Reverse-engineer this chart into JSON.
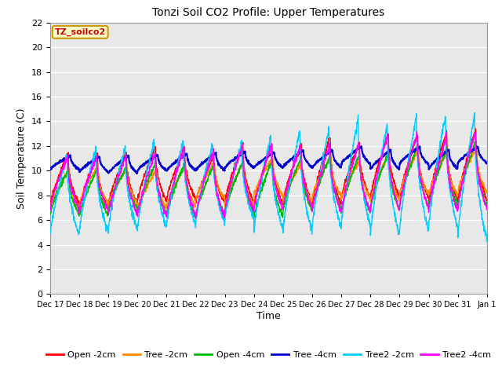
{
  "title": "Tonzi Soil CO2 Profile: Upper Temperatures",
  "xlabel": "Time",
  "ylabel": "Soil Temperature (C)",
  "ylim": [
    0,
    22
  ],
  "yticks": [
    0,
    2,
    4,
    6,
    8,
    10,
    12,
    14,
    16,
    18,
    20,
    22
  ],
  "series": {
    "Open -2cm": {
      "color": "#ff0000",
      "lw": 1.0
    },
    "Tree -2cm": {
      "color": "#ff8c00",
      "lw": 1.0
    },
    "Open -4cm": {
      "color": "#00bb00",
      "lw": 1.0
    },
    "Tree -4cm": {
      "color": "#0000cc",
      "lw": 1.5
    },
    "Tree2 -2cm": {
      "color": "#00ccff",
      "lw": 1.0
    },
    "Tree2 -4cm": {
      "color": "#ff00ff",
      "lw": 1.0
    }
  },
  "xtick_labels": [
    "Dec 17",
    "Dec 18",
    "Dec 19",
    "Dec 20",
    "Dec 21",
    "Dec 22",
    "Dec 23",
    "Dec 24",
    "Dec 25",
    "Dec 26",
    "Dec 27",
    "Dec 28",
    "Dec 29",
    "Dec 30",
    "Dec 31",
    "Jan 1"
  ],
  "watermark_text": "TZ_soilco2",
  "watermark_color": "#cc0000",
  "watermark_bg": "#ffffcc",
  "watermark_border": "#cc9900",
  "plot_bg": "#e8e8e8",
  "grid_color": "#ffffff",
  "n_days": 15,
  "ppd": 144
}
